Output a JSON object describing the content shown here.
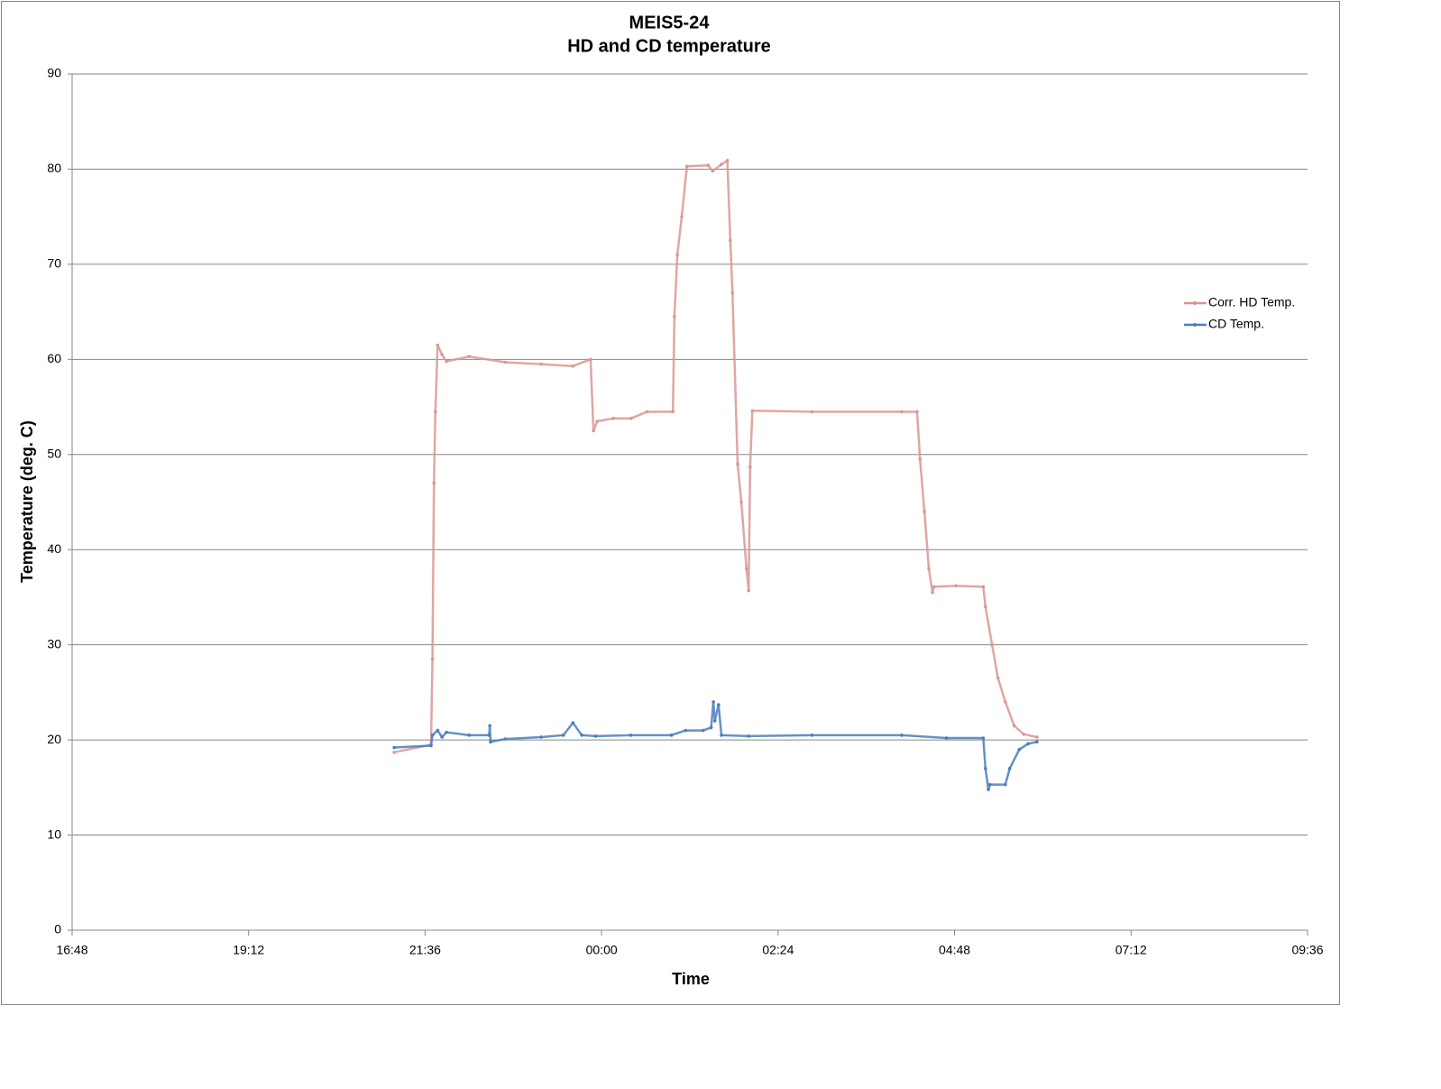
{
  "chart_data": {
    "type": "line",
    "title": "MEIS5-24",
    "subtitle": "HD and CD temperature",
    "x_label": "Time",
    "y_label": "Temperature (deg. C)",
    "xlim": [
      16.8,
      33.6
    ],
    "xticks": [
      {
        "value": 16.8,
        "label": "16:48"
      },
      {
        "value": 19.2,
        "label": "19:12"
      },
      {
        "value": 21.6,
        "label": "21:36"
      },
      {
        "value": 24.0,
        "label": "00:00"
      },
      {
        "value": 26.4,
        "label": "02:24"
      },
      {
        "value": 28.8,
        "label": "04:48"
      },
      {
        "value": 31.2,
        "label": "07:12"
      },
      {
        "value": 33.6,
        "label": "09:36"
      }
    ],
    "ylim": [
      0,
      90
    ],
    "yticks": [
      0,
      10,
      20,
      30,
      40,
      50,
      60,
      70,
      80,
      90
    ],
    "grid": true,
    "legend": "right",
    "series": [
      {
        "name": "Corr. HD Temp.",
        "color": "#d99694",
        "x": [
          21.18,
          21.68,
          21.7,
          21.72,
          21.74,
          21.77,
          21.83,
          21.89,
          22.2,
          22.69,
          23.18,
          23.61,
          23.85,
          23.89,
          23.94,
          24.16,
          24.4,
          24.62,
          24.97,
          24.99,
          25.03,
          25.09,
          25.16,
          25.45,
          25.51,
          25.63,
          25.71,
          25.75,
          25.78,
          25.85,
          25.9,
          25.97,
          26.0,
          26.02,
          26.05,
          26.86,
          28.08,
          28.29,
          28.33,
          28.39,
          28.45,
          28.5,
          28.52,
          28.82,
          29.19,
          29.22,
          29.31,
          29.39,
          29.49,
          29.61,
          29.74,
          29.92
        ],
        "values": [
          18.7,
          19.5,
          28.5,
          47,
          54.5,
          61.5,
          60.5,
          59.8,
          60.3,
          59.7,
          59.5,
          59.3,
          60,
          52.5,
          53.5,
          53.8,
          53.8,
          54.5,
          54.5,
          64.5,
          71,
          75,
          80.3,
          80.4,
          79.8,
          80.5,
          80.9,
          72.5,
          67,
          49,
          45,
          38,
          35.7,
          48.7,
          54.6,
          54.5,
          54.5,
          54.5,
          49.5,
          44,
          38,
          35.5,
          36.1,
          36.2,
          36.1,
          34,
          30,
          26.5,
          24,
          21.5,
          20.6,
          20.3
        ]
      },
      {
        "name": "CD Temp.",
        "color": "#4a7ebb",
        "x": [
          21.18,
          21.68,
          21.7,
          21.77,
          21.83,
          21.89,
          22.2,
          22.47,
          22.48,
          22.49,
          22.69,
          23.18,
          23.48,
          23.61,
          23.73,
          23.92,
          24.4,
          24.95,
          25.14,
          25.38,
          25.49,
          25.52,
          25.54,
          25.59,
          25.63,
          26.0,
          26.86,
          28.08,
          28.69,
          29.19,
          29.22,
          29.26,
          29.28,
          29.49,
          29.55,
          29.68,
          29.8,
          29.92
        ],
        "values": [
          19.2,
          19.4,
          20.5,
          21,
          20.3,
          20.8,
          20.5,
          20.5,
          21.5,
          19.8,
          20.1,
          20.3,
          20.5,
          21.8,
          20.5,
          20.4,
          20.5,
          20.5,
          21,
          21,
          21.3,
          24,
          22,
          23.7,
          20.5,
          20.4,
          20.5,
          20.5,
          20.2,
          20.2,
          17,
          14.8,
          15.3,
          15.3,
          17,
          19,
          19.6,
          19.8
        ]
      }
    ]
  }
}
